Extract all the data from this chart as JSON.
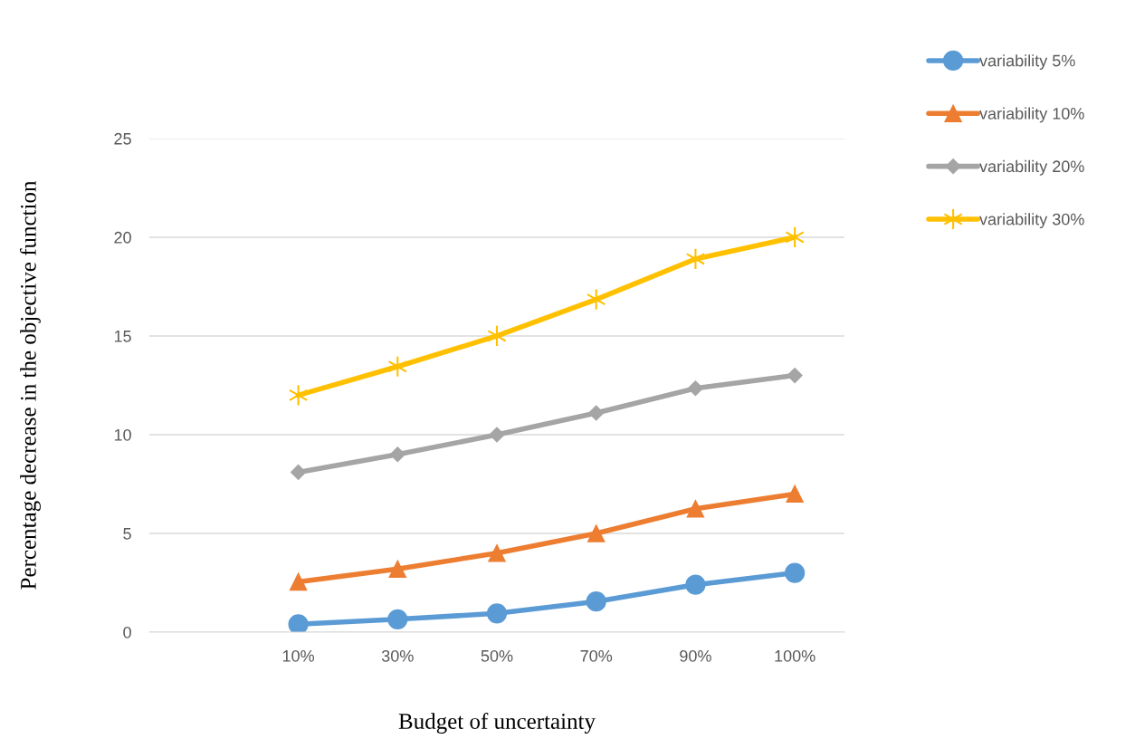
{
  "chart_data": {
    "type": "line",
    "xlabel": "Budget of uncertainty",
    "ylabel": "Percentage decrease in the objective function",
    "categories": [
      null,
      "10%",
      "30%",
      "50%",
      "70%",
      "90%",
      "100%"
    ],
    "series": [
      {
        "name": "variability 5%",
        "color": "#5b9bd5",
        "marker": "circle",
        "values": [
          null,
          0.4,
          0.65,
          0.95,
          1.55,
          2.4,
          3.0
        ]
      },
      {
        "name": "variability 10%",
        "color": "#ed7d31",
        "marker": "triangle",
        "values": [
          null,
          2.55,
          3.2,
          4.0,
          5.0,
          6.25,
          7.0
        ]
      },
      {
        "name": "variability 20%",
        "color": "#a5a5a5",
        "marker": "diamond",
        "values": [
          null,
          8.1,
          9.0,
          10.0,
          11.1,
          12.35,
          13.0
        ]
      },
      {
        "name": "variability 30%",
        "color": "#ffc000",
        "marker": "cross",
        "values": [
          null,
          12.0,
          13.45,
          15.0,
          16.85,
          18.9,
          20.0
        ]
      }
    ],
    "ylim": [
      0,
      25
    ],
    "yticks": [
      0,
      5,
      10,
      15,
      20,
      25
    ],
    "grid": "y",
    "legend": "top right",
    "line_style": "solid"
  }
}
